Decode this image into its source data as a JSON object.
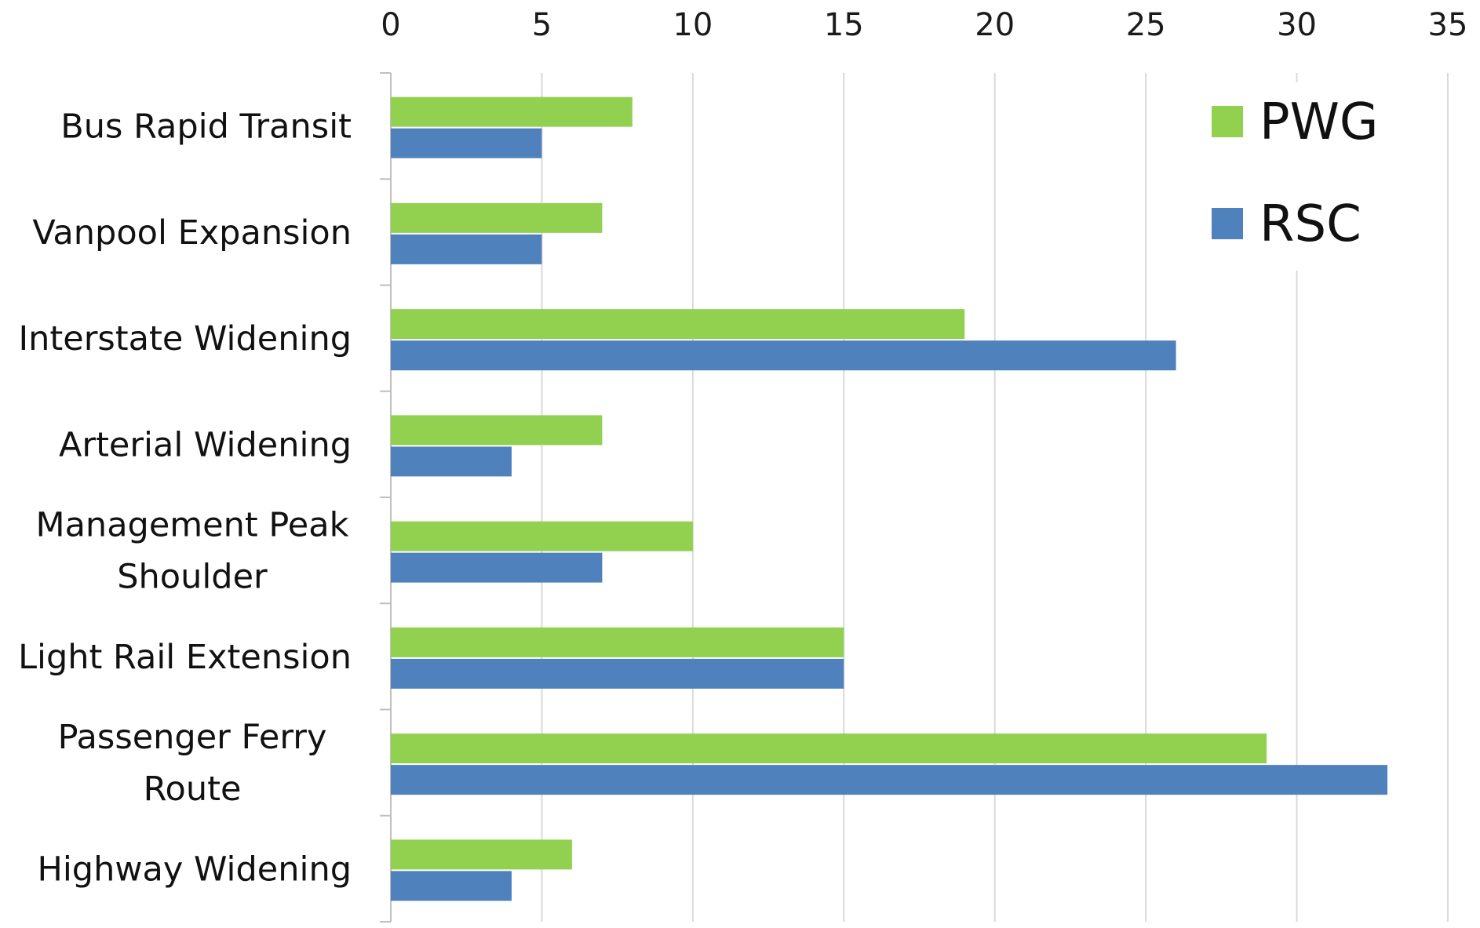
{
  "colors": {
    "PWG": "#92d050",
    "RSC": "#4f81bd",
    "gridline": "#d9d9d9",
    "axis": "#bfbfbf"
  },
  "chart_data": {
    "type": "bar",
    "orientation": "horizontal",
    "title": "",
    "xlabel": "",
    "ylabel": "",
    "xlim": [
      0,
      35
    ],
    "x_ticks": [
      0,
      5,
      10,
      15,
      20,
      25,
      30,
      35
    ],
    "x_axis_position": "top",
    "grid": true,
    "legend_position": "top-right",
    "categories": [
      [
        "Bus Rapid Transit"
      ],
      [
        "Vanpool Expansion"
      ],
      [
        "Interstate Widening"
      ],
      [
        "Arterial Widening"
      ],
      [
        "Management Peak",
        "Shoulder"
      ],
      [
        "Light Rail Extension"
      ],
      [
        "Passenger Ferry",
        "Route"
      ],
      [
        "Highway Widening"
      ]
    ],
    "series": [
      {
        "name": "PWG",
        "values": [
          8,
          7,
          19,
          7,
          10,
          15,
          29,
          6
        ]
      },
      {
        "name": "RSC",
        "values": [
          5,
          5,
          26,
          4,
          7,
          15,
          33,
          4
        ]
      }
    ]
  }
}
